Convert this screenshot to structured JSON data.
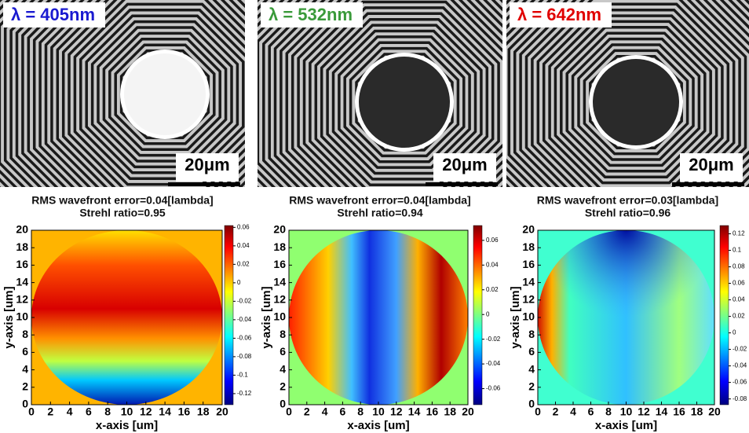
{
  "panels": [
    {
      "wavelength_label": "λ = 405nm",
      "scale_label": "20μm",
      "rms": "RMS wavefront error=0.04[lambda]",
      "strehl": "Strehl ratio=0.95",
      "map": {
        "type": "heatmap",
        "xlabel": "x-axis [um]",
        "ylabel": "y-axis [um]",
        "xlim": [
          0,
          20
        ],
        "ylim": [
          0,
          20
        ],
        "xticks": [
          0,
          2,
          4,
          6,
          8,
          10,
          12,
          14,
          16,
          18,
          20
        ],
        "yticks": [
          0,
          2,
          4,
          6,
          8,
          10,
          12,
          14,
          16,
          18,
          20
        ],
        "colorbar": {
          "lim": [
            -0.132,
            0.062
          ],
          "ticks": [
            0.06,
            0.04,
            0.02,
            0,
            -0.02,
            -0.04,
            -0.06,
            -0.08,
            -0.1,
            -0.12
          ]
        }
      }
    },
    {
      "wavelength_label": "λ = 532nm",
      "scale_label": "20μm",
      "rms": "RMS wavefront error=0.04[lambda]",
      "strehl": "Strehl ratio=0.94",
      "map": {
        "type": "heatmap",
        "xlabel": "x-axis [um]",
        "ylabel": "y-axis [um]",
        "xlim": [
          0,
          20
        ],
        "ylim": [
          0,
          20
        ],
        "xticks": [
          0,
          2,
          4,
          6,
          8,
          10,
          12,
          14,
          16,
          18,
          20
        ],
        "yticks": [
          0,
          2,
          4,
          6,
          8,
          10,
          12,
          14,
          16,
          18,
          20
        ],
        "colorbar": {
          "lim": [
            -0.073,
            0.072
          ],
          "ticks": [
            0.06,
            0.04,
            0.02,
            0,
            -0.02,
            -0.04,
            -0.06
          ]
        }
      }
    },
    {
      "wavelength_label": "λ = 642nm",
      "scale_label": "20μm",
      "rms": "RMS wavefront error=0.03[lambda]",
      "strehl": "Strehl ratio=0.96",
      "map": {
        "type": "heatmap",
        "xlabel": "x-axis [um]",
        "ylabel": "y-axis [um]",
        "xlim": [
          0,
          20
        ],
        "ylim": [
          0,
          20
        ],
        "xticks": [
          0,
          2,
          4,
          6,
          8,
          10,
          12,
          14,
          16,
          18,
          20
        ],
        "yticks": [
          0,
          2,
          4,
          6,
          8,
          10,
          12,
          14,
          16,
          18,
          20
        ],
        "colorbar": {
          "lim": [
            -0.087,
            0.13
          ],
          "ticks": [
            0.12,
            0.1,
            0.08,
            0.06,
            0.04,
            0.02,
            0,
            -0.02,
            -0.04,
            -0.06,
            -0.08
          ]
        }
      }
    }
  ]
}
